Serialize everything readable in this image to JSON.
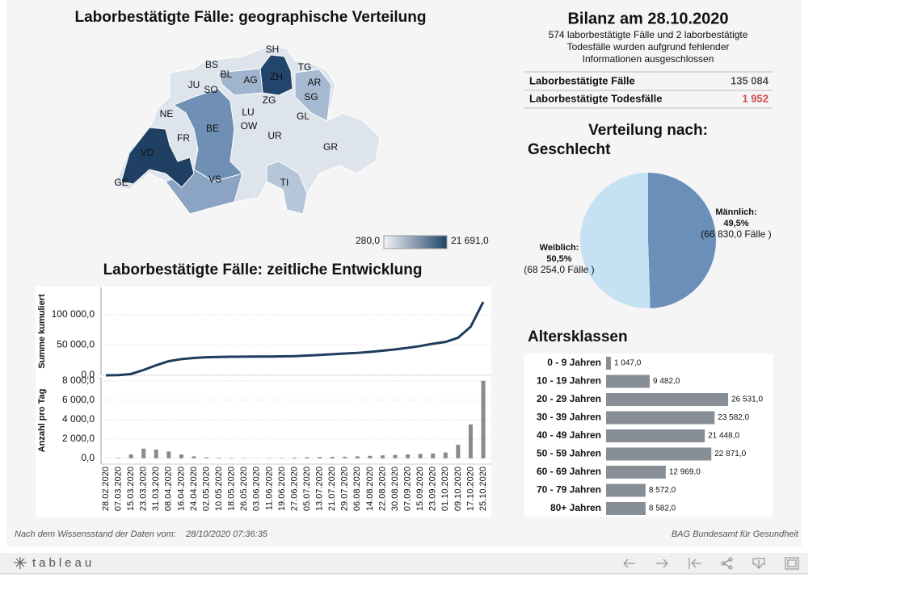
{
  "map": {
    "title": "Laborbestätigte Fälle: geographische Verteilung",
    "cantons": [
      "SH",
      "BS",
      "TG",
      "BL",
      "ZH",
      "AG",
      "AR",
      "JU",
      "SO",
      "SG",
      "ZG",
      "LU",
      "NE",
      "GL",
      "BE",
      "OW",
      "FR",
      "UR",
      "GR",
      "VD",
      "VS",
      "TI",
      "GE"
    ],
    "legend": {
      "min": "280,0",
      "max": "21 691,0",
      "colors": [
        "#f2f4f7",
        "#1f4468"
      ]
    }
  },
  "balance": {
    "title": "Bilanz am 28.10.2020",
    "note": [
      "574 laborbestätigte Fälle und 2 laborbestätigte",
      "Todesfälle wurden aufgrund fehlender",
      "Informationen ausgeschlossen"
    ],
    "rows": [
      {
        "label": "Laborbestätigte Fälle",
        "value": "135 084",
        "color": "#555555"
      },
      {
        "label": "Laborbestätigte Todesfälle",
        "value": "1 952",
        "color": "#d0494b"
      }
    ]
  },
  "chart_data": [
    {
      "type": "panels",
      "title": "Laborbestätigte Fälle: zeitliche Entwicklung",
      "categories": [
        "28.02.2020",
        "07.03.2020",
        "15.03.2020",
        "23.03.2020",
        "31.03.2020",
        "08.04.2020",
        "16.04.2020",
        "24.04.2020",
        "02.05.2020",
        "10.05.2020",
        "18.05.2020",
        "26.05.2020",
        "03.06.2020",
        "11.06.2020",
        "19.06.2020",
        "27.06.2020",
        "05.07.2020",
        "13.07.2020",
        "21.07.2020",
        "29.07.2020",
        "06.08.2020",
        "14.08.2020",
        "22.08.2020",
        "30.08.2020",
        "07.09.2020",
        "15.09.2020",
        "23.09.2020",
        "01.10.2020",
        "09.10.2020",
        "17.10.2020",
        "25.10.2020"
      ],
      "panels": [
        {
          "type": "line",
          "ylabel": "Summe kumuliert",
          "color": "#1f3b5e",
          "values": [
            0,
            300,
            2200,
            8800,
            16600,
            23300,
            26700,
            28600,
            29800,
            30300,
            30600,
            30800,
            30900,
            31000,
            31200,
            31600,
            32600,
            33600,
            34800,
            35900,
            37000,
            38600,
            40600,
            42800,
            45300,
            48300,
            52000,
            55000,
            62000,
            80000,
            121000
          ],
          "ylim": [
            0,
            145000
          ],
          "yticks": [
            {
              "value": 0,
              "label": "0,0"
            },
            {
              "value": 50000,
              "label": "50 000,0"
            },
            {
              "value": 100000,
              "label": "100 000,0"
            }
          ]
        },
        {
          "type": "bar",
          "ylabel": "Anzahl pro Tag",
          "color": "#8a8a8a",
          "values": [
            0,
            50,
            400,
            1000,
            900,
            700,
            400,
            200,
            100,
            60,
            40,
            30,
            20,
            30,
            40,
            80,
            120,
            130,
            150,
            160,
            200,
            250,
            300,
            350,
            400,
            450,
            500,
            600,
            1400,
            3500,
            8000
          ],
          "ylim": [
            -600,
            8400
          ],
          "yticks": [
            {
              "value": 0,
              "label": "0,0"
            },
            {
              "value": 2000,
              "label": "2 000,0"
            },
            {
              "value": 4000,
              "label": "4 000,0"
            },
            {
              "value": 6000,
              "label": "6 000,0"
            },
            {
              "value": 8000,
              "label": "8 000,0"
            }
          ]
        }
      ]
    },
    {
      "type": "pie",
      "title": "Verteilung nach:",
      "subtitle": "Geschlecht",
      "categories": [
        "Männlich:",
        "Weiblich:"
      ],
      "values": [
        49.5,
        50.5
      ],
      "value_labels": [
        "49,5%",
        "50,5%"
      ],
      "counts": [
        66830,
        68254
      ],
      "count_labels": [
        "(66 830,0 Fälle )",
        "(68 254,0 Fälle )"
      ],
      "colors": [
        "#6a8fb8",
        "#c5e1f2"
      ]
    },
    {
      "type": "barh",
      "title": "Altersklassen",
      "categories": [
        "0 - 9 Jahren",
        "10 - 19 Jahren",
        "20 - 29 Jahren",
        "30 - 39 Jahren",
        "40 - 49 Jahren",
        "50 - 59 Jahren",
        "60 - 69 Jahren",
        "70 - 79 Jahren",
        "80+ Jahren"
      ],
      "values": [
        1047,
        9482,
        26531,
        23582,
        21448,
        22871,
        12969,
        8572,
        8582
      ],
      "value_labels": [
        "1 047,0",
        "9 482,0",
        "26 531,0",
        "23 582,0",
        "21 448,0",
        "22 871,0",
        "12 969,0",
        "8 572,0",
        "8 582,0"
      ],
      "color": "#888e95",
      "xlim": [
        0,
        36000
      ]
    }
  ],
  "footer": {
    "left": "Nach dem Wissensstand der Daten vom:",
    "date": "28/10/2020 07:36:35",
    "right": "BAG Bundesamt für Gesundheit"
  },
  "toolbar": {
    "brand": "tableau"
  }
}
